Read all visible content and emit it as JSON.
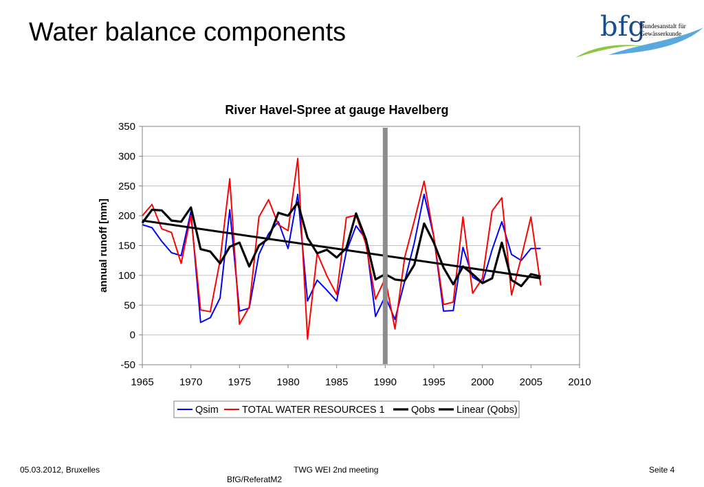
{
  "slide": {
    "title": "Water balance components"
  },
  "logo": {
    "text": "bfg",
    "line1": "Bundesanstalt für",
    "line2": "Gewässerkunde"
  },
  "footer": {
    "date_place": "05.03.2012, Bruxelles",
    "meeting": "TWG WEI 2nd meeting",
    "ref": "BfG/ReferatM2",
    "page": "Seite 4"
  },
  "colors": {
    "qsim": "#0000ff",
    "total": "#ff0000",
    "qobs": "#000000",
    "linear": "#000000",
    "marker": "#8c8c8c",
    "grid": "#c0c0c0"
  },
  "chart_data": {
    "type": "line",
    "title": "River Havel-Spree at gauge Havelberg",
    "xlabel": "",
    "ylabel": "annual runoff [mm]",
    "xlim": [
      1965,
      2010
    ],
    "ylim": [
      -50,
      350
    ],
    "xticks": [
      1965,
      1970,
      1975,
      1980,
      1985,
      1990,
      1995,
      2000,
      2005,
      2010
    ],
    "yticks": [
      -50,
      0,
      50,
      100,
      150,
      200,
      250,
      300,
      350
    ],
    "grid": "horizontal",
    "legend_position": "bottom",
    "vertical_marker_x": 1990,
    "x": [
      1965,
      1966,
      1967,
      1968,
      1969,
      1970,
      1971,
      1972,
      1973,
      1974,
      1975,
      1976,
      1977,
      1978,
      1979,
      1980,
      1981,
      1982,
      1983,
      1984,
      1985,
      1986,
      1987,
      1988,
      1989,
      1990,
      1991,
      1992,
      1993,
      1994,
      1995,
      1996,
      1997,
      1998,
      1999,
      2000,
      2001,
      2002,
      2003,
      2004,
      2005,
      2006
    ],
    "series": [
      {
        "name": "Qsim",
        "color_key": "qsim",
        "values": [
          185,
          180,
          157,
          138,
          133,
          207,
          21,
          29,
          62,
          210,
          40,
          45,
          135,
          170,
          190,
          145,
          236,
          57,
          92,
          75,
          57,
          140,
          183,
          161,
          31,
          65,
          26,
          90,
          155,
          236,
          165,
          40,
          41,
          147,
          97,
          87,
          143,
          190,
          135,
          125,
          145,
          145
        ]
      },
      {
        "name": "TOTAL WATER RESOURCES 1",
        "color_key": "total",
        "values": [
          200,
          219,
          178,
          172,
          120,
          200,
          42,
          39,
          125,
          262,
          18,
          47,
          198,
          227,
          185,
          175,
          296,
          -7,
          137,
          99,
          68,
          197,
          201,
          153,
          60,
          95,
          10,
          130,
          192,
          258,
          165,
          51,
          55,
          198,
          70,
          95,
          208,
          230,
          67,
          130,
          198,
          83
        ]
      },
      {
        "name": "Qobs",
        "color_key": "qobs",
        "values": [
          188,
          210,
          209,
          192,
          190,
          214,
          144,
          140,
          120,
          148,
          155,
          115,
          150,
          162,
          205,
          200,
          222,
          163,
          137,
          143,
          130,
          146,
          204,
          161,
          93,
          102,
          93,
          91,
          118,
          187,
          155,
          113,
          85,
          115,
          102,
          87,
          95,
          155,
          92,
          82,
          102,
          98
        ]
      }
    ],
    "trend": {
      "name": "Linear (Qobs)",
      "color_key": "linear",
      "x": [
        1965,
        2006
      ],
      "values": [
        192,
        95
      ]
    }
  }
}
